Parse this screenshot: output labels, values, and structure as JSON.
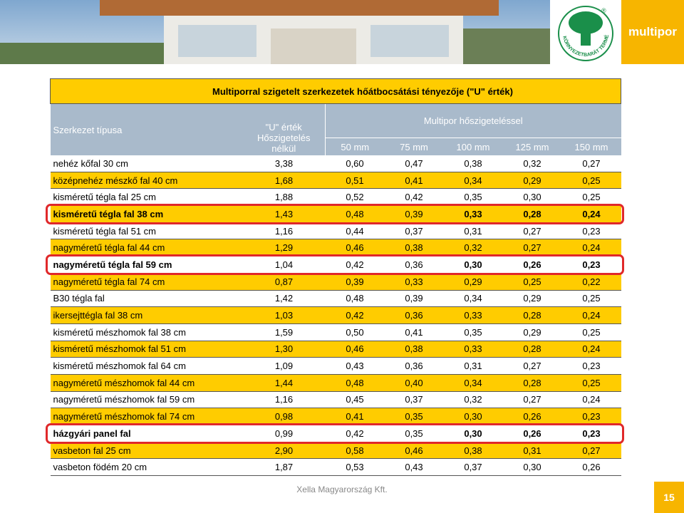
{
  "brand": "multipor",
  "logo": {
    "text": "KÖRNYEZETBARÁT TERMÉK",
    "mark": "®"
  },
  "table": {
    "title": "Multiporral szigetelt szerkezetek hőátbocsátási tényezője (\"U\" érték)",
    "header": {
      "structure": "Szerkezet típusa",
      "u_value": [
        "\"U\" érték",
        "Hőszigetelés",
        "nélkül"
      ],
      "insulated": "Multipor hőszigeteléssel",
      "thicknesses": [
        "50 mm",
        "75 mm",
        "100 mm",
        "125 mm",
        "150 mm"
      ]
    },
    "rows": [
      {
        "cells": [
          "nehéz kőfal 30 cm",
          "3,38",
          "0,60",
          "0,47",
          "0,38",
          "0,32",
          "0,27"
        ]
      },
      {
        "cells": [
          "középnehéz mészkő fal 40 cm",
          "1,68",
          "0,51",
          "0,41",
          "0,34",
          "0,29",
          "0,25"
        ]
      },
      {
        "cells": [
          "kisméretű tégla fal 25 cm",
          "1,88",
          "0,52",
          "0,42",
          "0,35",
          "0,30",
          "0,25"
        ]
      },
      {
        "cells": [
          "kisméretű tégla fal 38 cm",
          "1,43",
          "0,48",
          "0,39",
          "0,33",
          "0,28",
          "0,24"
        ],
        "highlight": true
      },
      {
        "cells": [
          "kisméretű tégla fal 51 cm",
          "1,16",
          "0,44",
          "0,37",
          "0,31",
          "0,27",
          "0,23"
        ]
      },
      {
        "cells": [
          "nagyméretű tégla fal 44 cm",
          "1,29",
          "0,46",
          "0,38",
          "0,32",
          "0,27",
          "0,24"
        ]
      },
      {
        "cells": [
          "nagyméretű tégla fal 59 cm",
          "1,04",
          "0,42",
          "0,36",
          "0,30",
          "0,26",
          "0,23"
        ],
        "highlight": true
      },
      {
        "cells": [
          "nagyméretű tégla fal 74 cm",
          "0,87",
          "0,39",
          "0,33",
          "0,29",
          "0,25",
          "0,22"
        ]
      },
      {
        "cells": [
          "B30 tégla fal",
          "1,42",
          "0,48",
          "0,39",
          "0,34",
          "0,29",
          "0,25"
        ]
      },
      {
        "cells": [
          "ikersejttégla fal 38 cm",
          "1,03",
          "0,42",
          "0,36",
          "0,33",
          "0,28",
          "0,24"
        ]
      },
      {
        "cells": [
          "kisméretű mészhomok fal 38 cm",
          "1,59",
          "0,50",
          "0,41",
          "0,35",
          "0,29",
          "0,25"
        ]
      },
      {
        "cells": [
          "kisméretű mészhomok fal 51 cm",
          "1,30",
          "0,46",
          "0,38",
          "0,33",
          "0,28",
          "0,24"
        ]
      },
      {
        "cells": [
          "kisméretű mészhomok fal 64 cm",
          "1,09",
          "0,43",
          "0,36",
          "0,31",
          "0,27",
          "0,23"
        ]
      },
      {
        "cells": [
          "nagyméretű mészhomok fal 44 cm",
          "1,44",
          "0,48",
          "0,40",
          "0,34",
          "0,28",
          "0,25"
        ]
      },
      {
        "cells": [
          "nagyméretű mészhomok fal 59 cm",
          "1,16",
          "0,45",
          "0,37",
          "0,32",
          "0,27",
          "0,24"
        ]
      },
      {
        "cells": [
          "nagyméretű mészhomok fal 74 cm",
          "0,98",
          "0,41",
          "0,35",
          "0,30",
          "0,26",
          "0,23"
        ]
      },
      {
        "cells": [
          "házgyári panel fal",
          "0,99",
          "0,42",
          "0,35",
          "0,30",
          "0,26",
          "0,23"
        ],
        "highlight": true
      },
      {
        "cells": [
          "vasbeton fal 25 cm",
          "2,90",
          "0,58",
          "0,46",
          "0,38",
          "0,31",
          "0,27"
        ]
      },
      {
        "cells": [
          "vasbeton födém 20 cm",
          "1,87",
          "0,53",
          "0,43",
          "0,37",
          "0,30",
          "0,26"
        ]
      }
    ]
  },
  "footer": {
    "company": "Xella Magyarország Kft.",
    "page": "15"
  }
}
